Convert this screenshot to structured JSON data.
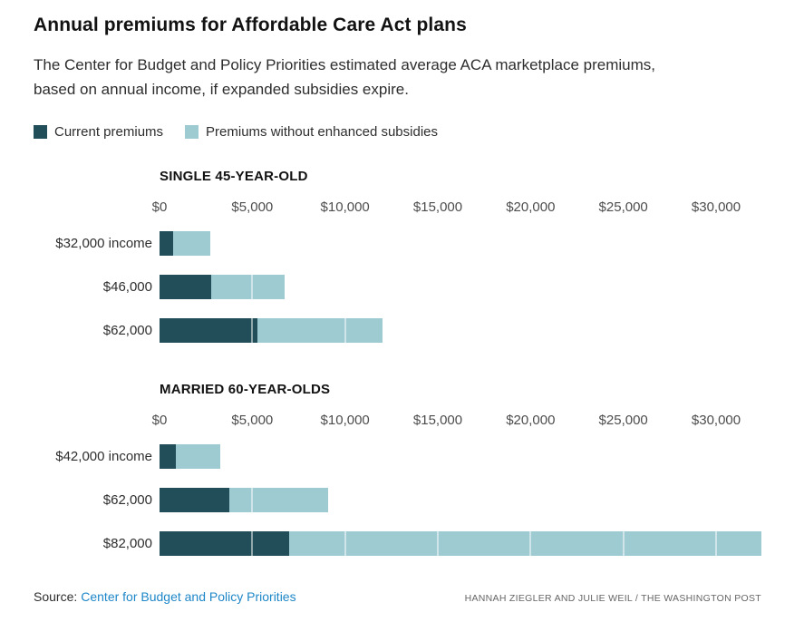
{
  "header": {
    "title": "Annual premiums for Affordable Care Act plans",
    "subtitle": "The Center for Budget and Policy Priorities estimated average ACA marketplace premiums, based on annual income, if expanded subsidies expire."
  },
  "legend": [
    {
      "label": "Current premiums",
      "color": "#214e58"
    },
    {
      "label": "Premiums without enhanced subsidies",
      "color": "#9ecad2"
    }
  ],
  "chart_data": [
    {
      "type": "bar",
      "orientation": "horizontal",
      "title": "SINGLE 45-YEAR-OLD",
      "categories": [
        "$32,000 income",
        "$46,000",
        "$62,000"
      ],
      "series": [
        {
          "name": "Current premiums",
          "values": [
            730,
            2770,
            5270
          ]
        },
        {
          "name": "Premiums without enhanced subsidies",
          "values": [
            2720,
            6730,
            12000
          ]
        }
      ],
      "xlim": [
        0,
        30000
      ],
      "x_ticks": [
        "$0",
        "$5,000",
        "$10,000",
        "$15,000",
        "$20,000",
        "$25,000",
        "$30,000"
      ],
      "bar_encoding": "full bar length = premium without enhanced subsidies; dark overlay segment = current premium",
      "grid": "white tick lines drawn over bars every $5,000",
      "legend_position": "top-left above charts"
    },
    {
      "type": "bar",
      "orientation": "horizontal",
      "title": "MARRIED 60-YEAR-OLDS",
      "categories": [
        "$42,000 income",
        "$62,000",
        "$82,000"
      ],
      "series": [
        {
          "name": "Current premiums",
          "values": [
            870,
            3750,
            6970
          ]
        },
        {
          "name": "Premiums without enhanced subsidies",
          "values": [
            3290,
            9110,
            32500
          ]
        }
      ],
      "xlim": [
        0,
        30000
      ],
      "x_ticks": [
        "$0",
        "$5,000",
        "$10,000",
        "$15,000",
        "$20,000",
        "$25,000",
        "$30,000"
      ],
      "bar_encoding": "full bar length = premium without enhanced subsidies; dark overlay segment = current premium; $82,000 bar overflows axis and is clipped at chart edge",
      "grid": "white tick lines drawn over bars every $5,000",
      "legend_position": "top-left above charts"
    }
  ],
  "footer": {
    "source_label": "Source:",
    "source_link": "Center for Budget and Policy Priorities",
    "link_color": "#1e87c8",
    "credit": "HANNAH ZIEGLER AND JULIE WEIL / THE WASHINGTON POST"
  }
}
